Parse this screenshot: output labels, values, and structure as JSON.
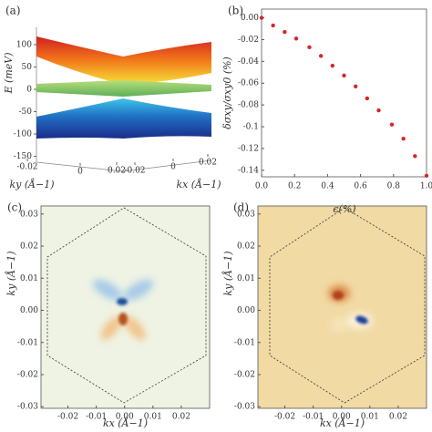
{
  "chart_data": [
    {
      "type": "surface",
      "panel_label": "(a)",
      "zlabel": "E (meV)",
      "zticks": [
        100,
        50,
        0,
        -50,
        -100,
        -150
      ],
      "ylabel": "ky (Å−1)",
      "yticks": [
        -0.02,
        0,
        0.02
      ],
      "xlabel": "kx (Å−1)",
      "xticks": [
        -0.02,
        0,
        0.02
      ]
    },
    {
      "type": "scatter",
      "panel_label": "(b)",
      "color": "#d62728",
      "xlabel": "ϵ(%)",
      "ylabel": "δσxy/σxy0 (%)",
      "x": [
        0,
        0.07,
        0.14,
        0.21,
        0.29,
        0.36,
        0.43,
        0.5,
        0.57,
        0.64,
        0.71,
        0.79,
        0.86,
        0.93,
        1.0
      ],
      "values": [
        0,
        -0.007,
        -0.013,
        -0.019,
        -0.027,
        -0.035,
        -0.044,
        -0.053,
        -0.063,
        -0.074,
        -0.085,
        -0.098,
        -0.111,
        -0.127,
        -0.145
      ],
      "xlim": [
        0,
        1.0
      ],
      "xticks": [
        {
          "value": 0,
          "label": "0.0"
        },
        {
          "value": 0.2,
          "label": "0.2"
        },
        {
          "value": 0.4,
          "label": "0.4"
        },
        {
          "value": 0.6,
          "label": "0.6"
        },
        {
          "value": 0.8,
          "label": "0.8"
        },
        {
          "value": 1.0,
          "label": "1.0"
        }
      ],
      "ylim": [
        -0.146,
        0.008
      ],
      "yticks": [
        {
          "value": 0,
          "label": "0.00"
        },
        -0.02,
        -0.04,
        -0.06,
        -0.08,
        -0.1,
        -0.12,
        -0.14
      ]
    },
    {
      "type": "heatmap",
      "panel_label": "(c)",
      "xlabel": "kx (Å−1)",
      "ylabel": "ky (Å−1)",
      "xlim": [
        -0.0295,
        0.03
      ],
      "ylim": [
        -0.0305,
        0.0325
      ],
      "xticks": [
        -0.02,
        -0.01,
        {
          "value": 0,
          "label": "0.00"
        },
        0.01,
        0.02
      ],
      "yticks": [
        0.03,
        0.02,
        0.01,
        {
          "value": 0,
          "label": "0.00"
        },
        -0.01,
        -0.02,
        -0.03
      ]
    },
    {
      "type": "heatmap",
      "panel_label": "(d)",
      "xlabel": "kx (Å−1)",
      "ylabel": "ky (Å−1)",
      "xlim": [
        -0.0295,
        0.03
      ],
      "ylim": [
        -0.0305,
        0.0325
      ],
      "xticks": [
        -0.02,
        -0.01,
        {
          "value": 0,
          "label": "0.00"
        },
        0.01,
        0.02
      ],
      "yticks": [
        0.03,
        0.02,
        0.01,
        {
          "value": 0,
          "label": "0.00"
        },
        -0.01,
        -0.02,
        -0.03
      ]
    }
  ]
}
